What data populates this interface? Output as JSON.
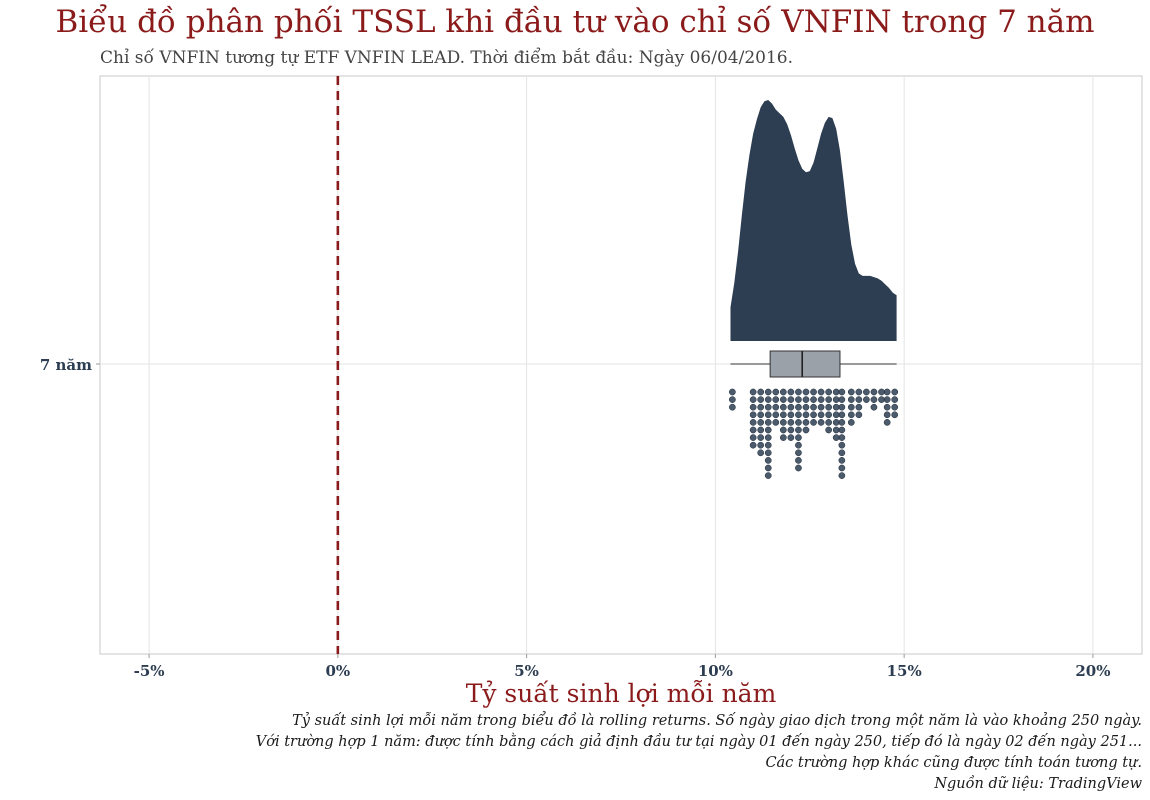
{
  "title": "Biểu đồ phân phối TSSL khi đầu tư vào chỉ số VNFIN trong 7 năm",
  "subtitle": "Chỉ số VNFIN tương tự ETF VNFIN LEAD. Thời điểm bắt đầu: Ngày 06/04/2016.",
  "caption_lines": [
    "Tỷ suất sinh lợi mỗi năm trong biểu đồ là rolling returns. Số ngày giao dịch trong một năm là vào khoảng 250 ngày.",
    "Với trường hợp 1 năm: được tính bằng cách giả định đầu tư tại ngày 01 đến ngày 250, tiếp đó là ngày 02 đến ngày 251...",
    "Các trường hợp khác cũng được tính toán tương tự.",
    "Nguồn dữ liệu: TradingView"
  ],
  "colors": {
    "title": "#8b1a1a",
    "density": "#2d3e52",
    "box_fill": "#9aa1a9",
    "dots": "#2d3e52",
    "zero_line": "#8b1a1a",
    "grid": "#e3e3e3",
    "tick_text": "#2d3e52"
  },
  "chart_data": {
    "type": "raincloud",
    "xlabel": "Tỷ suất sinh lợi mỗi năm",
    "ylabel": "",
    "xlim": [
      -6.3,
      21.3
    ],
    "x_ticks": [
      -5,
      0,
      5,
      10,
      15,
      20
    ],
    "x_tick_labels": [
      "-5%",
      "0%",
      "5%",
      "10%",
      "15%",
      "20%"
    ],
    "categories": [
      "7 năm"
    ],
    "reference_line": {
      "x": 0,
      "style": "dashed"
    },
    "grid": true,
    "box": {
      "min": 10.4,
      "q1": 11.45,
      "median": 12.3,
      "q3": 13.3,
      "max": 14.8
    },
    "density": [
      [
        10.4,
        0.14
      ],
      [
        10.5,
        0.24
      ],
      [
        10.6,
        0.37
      ],
      [
        10.7,
        0.52
      ],
      [
        10.8,
        0.66
      ],
      [
        10.9,
        0.77
      ],
      [
        11.0,
        0.86
      ],
      [
        11.1,
        0.92
      ],
      [
        11.2,
        0.97
      ],
      [
        11.3,
        0.995
      ],
      [
        11.4,
        1.0
      ],
      [
        11.5,
        0.985
      ],
      [
        11.6,
        0.96
      ],
      [
        11.7,
        0.945
      ],
      [
        11.8,
        0.93
      ],
      [
        11.9,
        0.9
      ],
      [
        12.0,
        0.855
      ],
      [
        12.1,
        0.8
      ],
      [
        12.2,
        0.75
      ],
      [
        12.3,
        0.715
      ],
      [
        12.4,
        0.7
      ],
      [
        12.5,
        0.705
      ],
      [
        12.6,
        0.74
      ],
      [
        12.7,
        0.8
      ],
      [
        12.8,
        0.86
      ],
      [
        12.9,
        0.905
      ],
      [
        13.0,
        0.93
      ],
      [
        13.1,
        0.925
      ],
      [
        13.2,
        0.88
      ],
      [
        13.3,
        0.79
      ],
      [
        13.4,
        0.66
      ],
      [
        13.5,
        0.52
      ],
      [
        13.6,
        0.4
      ],
      [
        13.7,
        0.32
      ],
      [
        13.8,
        0.28
      ],
      [
        13.9,
        0.27
      ],
      [
        14.0,
        0.27
      ],
      [
        14.1,
        0.27
      ],
      [
        14.2,
        0.265
      ],
      [
        14.3,
        0.26
      ],
      [
        14.4,
        0.25
      ],
      [
        14.5,
        0.235
      ],
      [
        14.6,
        0.22
      ],
      [
        14.7,
        0.2
      ],
      [
        14.8,
        0.19
      ]
    ],
    "dot_columns": [
      {
        "x": 10.45,
        "count": 3
      },
      {
        "x": 11.0,
        "count": 8
      },
      {
        "x": 11.2,
        "count": 9
      },
      {
        "x": 11.4,
        "count": 12
      },
      {
        "x": 11.6,
        "count": 5
      },
      {
        "x": 11.8,
        "count": 7
      },
      {
        "x": 12.0,
        "count": 7
      },
      {
        "x": 12.2,
        "count": 11
      },
      {
        "x": 12.4,
        "count": 6
      },
      {
        "x": 12.6,
        "count": 5
      },
      {
        "x": 12.8,
        "count": 5
      },
      {
        "x": 13.0,
        "count": 6
      },
      {
        "x": 13.2,
        "count": 7
      },
      {
        "x": 13.35,
        "count": 12
      },
      {
        "x": 13.6,
        "count": 5
      },
      {
        "x": 13.8,
        "count": 4
      },
      {
        "x": 14.0,
        "count": 2
      },
      {
        "x": 14.2,
        "count": 3
      },
      {
        "x": 14.4,
        "count": 2
      },
      {
        "x": 14.55,
        "count": 5
      },
      {
        "x": 14.75,
        "count": 4
      }
    ]
  }
}
